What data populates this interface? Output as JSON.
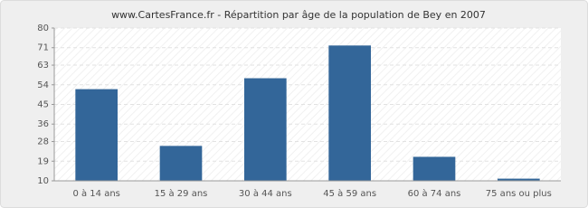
{
  "chart_data": {
    "type": "bar",
    "title": "www.CartesFrance.fr - Répartition par âge de la population de Bey en 2007",
    "categories": [
      "0 à 14 ans",
      "15 à 29 ans",
      "30 à 44 ans",
      "45 à 59 ans",
      "60 à 74 ans",
      "75 ans ou plus"
    ],
    "values": [
      52,
      26,
      57,
      72,
      21,
      11
    ],
    "color": "#336699",
    "ylim": [
      10,
      80
    ],
    "yticks": [
      10,
      19,
      28,
      36,
      45,
      54,
      63,
      71,
      80
    ],
    "grid": true
  }
}
